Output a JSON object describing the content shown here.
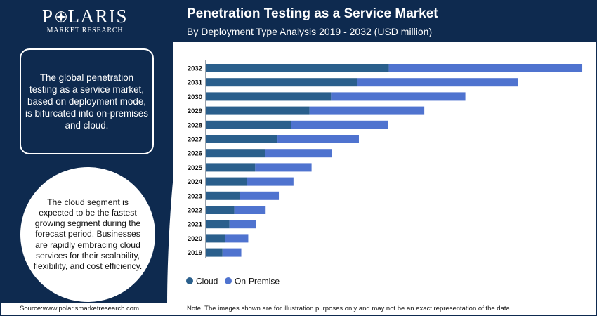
{
  "brand": {
    "name": "POLARIS",
    "tagline": "MARKET RESEARCH"
  },
  "header": {
    "title": "Penetration Testing as a Service Market",
    "subtitle": "By Deployment Type Analysis 2019 - 2032 (USD million)"
  },
  "info_box": {
    "text": "The global penetration testing as a service market, based on deployment mode, is bifurcated into on-premises and cloud."
  },
  "highlight": {
    "text": "The cloud segment is expected to be the fastest growing segment during the forecast period. Businesses are rapidly embracing cloud services for their scalability, flexibility, and cost efficiency."
  },
  "footer": {
    "source": "Source:www.polarismarketresearch.com",
    "note": "Note: The images shown are for illustration purposes only and may not be an exact representation of the data."
  },
  "colors": {
    "navy": "#0e2a4f",
    "cloud": "#2a5f8c",
    "on_premise": "#4f73cf"
  },
  "chart_data": {
    "type": "bar",
    "orientation": "horizontal",
    "stacked": true,
    "title": "Penetration Testing as a Service Market",
    "subtitle": "By Deployment Type Analysis 2019 - 2032 (USD million)",
    "categories": [
      "2032",
      "2031",
      "2030",
      "2029",
      "2028",
      "2027",
      "2026",
      "2025",
      "2024",
      "2023",
      "2022",
      "2021",
      "2020",
      "2019"
    ],
    "series": [
      {
        "name": "Cloud",
        "color": "#2a5f8c",
        "values": [
          263,
          218,
          180,
          149,
          123,
          103,
          85,
          71,
          59,
          49,
          41,
          34,
          28,
          24
        ]
      },
      {
        "name": "On-Premise",
        "color": "#4f73cf",
        "values": [
          278,
          231,
          193,
          165,
          139,
          117,
          96,
          81,
          67,
          56,
          45,
          38,
          33,
          27
        ]
      }
    ],
    "x_axis_visible": false,
    "xlim": [
      0,
      545
    ],
    "grid": false,
    "legend": "bottom-left"
  }
}
